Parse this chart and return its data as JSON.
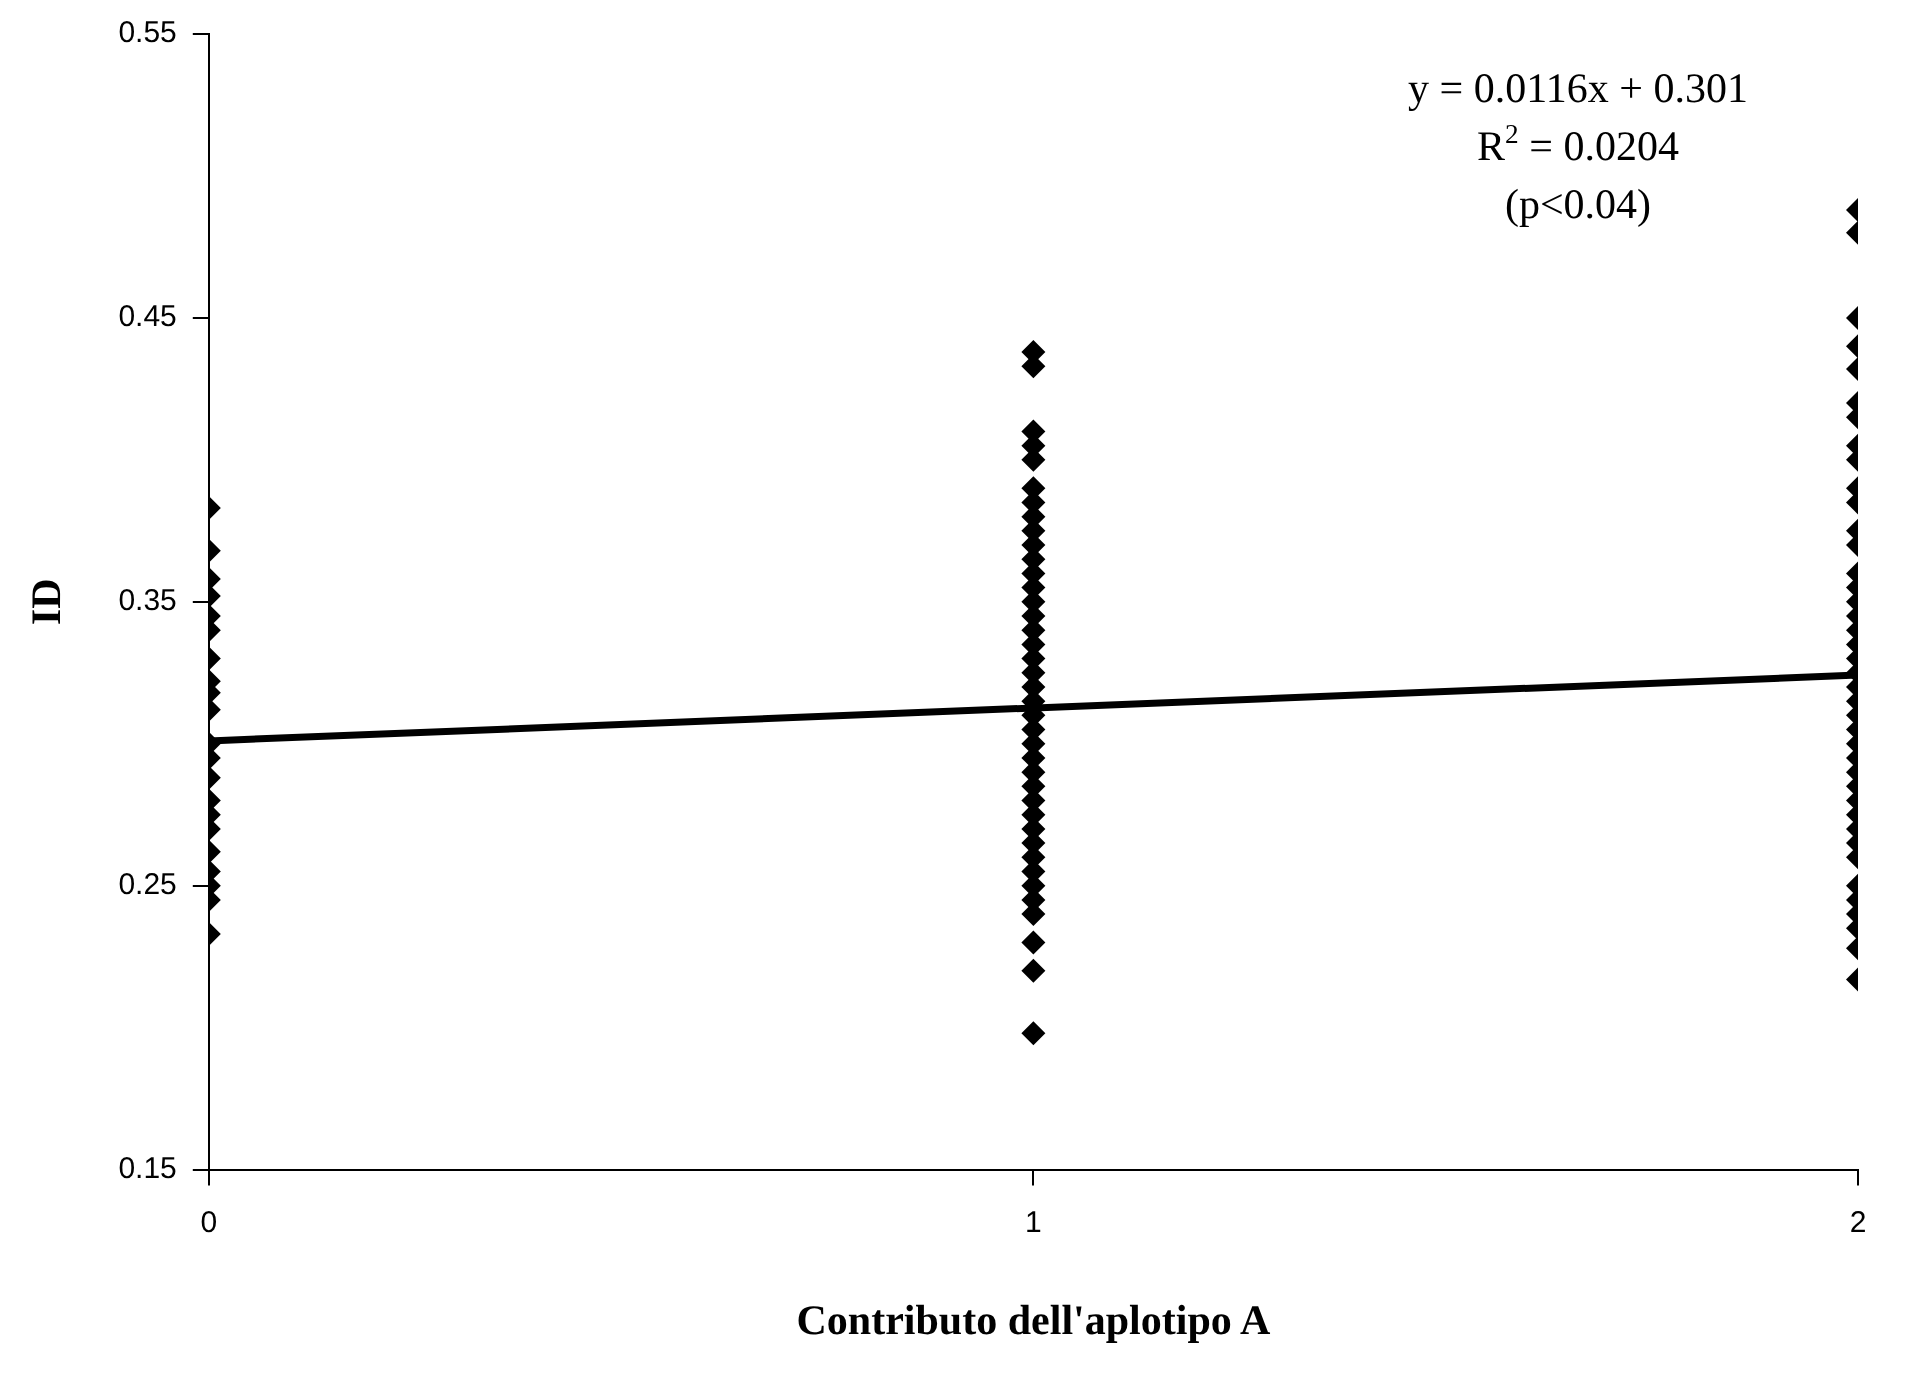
{
  "chart_data": {
    "type": "scatter",
    "xlabel": "Contributo dell'aplotipo A",
    "ylabel": "ID",
    "xlim": [
      0,
      2
    ],
    "xticks": [
      0,
      1,
      2
    ],
    "ylim": [
      0.15,
      0.55
    ],
    "yticks": [
      0.15,
      0.25,
      0.35,
      0.45,
      0.55
    ],
    "grid": false,
    "legend": false,
    "marker": "diamond",
    "annotations": [
      "y = 0.0116x + 0.301",
      "R$^{2}$ = 0.0204",
      "(p<0.04)"
    ],
    "series": [
      {
        "color": "#000000",
        "x": [
          0,
          0,
          0,
          0,
          0,
          0,
          0,
          0,
          0,
          0,
          0,
          0,
          0,
          0,
          0,
          0,
          0,
          0,
          0,
          0,
          0,
          1,
          1,
          1,
          1,
          1,
          1,
          1,
          1,
          1,
          1,
          1,
          1,
          1,
          1,
          1,
          1,
          1,
          1,
          1,
          1,
          1,
          1,
          1,
          1,
          1,
          1,
          1,
          1,
          1,
          1,
          1,
          1,
          1,
          1,
          1,
          1,
          1,
          1,
          1,
          2,
          2,
          2,
          2,
          2,
          2,
          2,
          2,
          2,
          2,
          2,
          2,
          2,
          2,
          2,
          2,
          2,
          2,
          2,
          2,
          2,
          2,
          2,
          2,
          2,
          2,
          2,
          2,
          2,
          2,
          2,
          2,
          2,
          2,
          2,
          2,
          2,
          2,
          2,
          2
        ],
        "values": [
          0.383,
          0.368,
          0.358,
          0.352,
          0.345,
          0.34,
          0.33,
          0.322,
          0.318,
          0.312,
          0.3,
          0.295,
          0.288,
          0.28,
          0.275,
          0.27,
          0.262,
          0.255,
          0.25,
          0.245,
          0.233,
          0.438,
          0.433,
          0.41,
          0.405,
          0.4,
          0.39,
          0.385,
          0.38,
          0.375,
          0.37,
          0.365,
          0.36,
          0.355,
          0.35,
          0.345,
          0.34,
          0.335,
          0.33,
          0.325,
          0.32,
          0.315,
          0.31,
          0.305,
          0.3,
          0.295,
          0.29,
          0.285,
          0.28,
          0.275,
          0.27,
          0.265,
          0.26,
          0.255,
          0.25,
          0.245,
          0.24,
          0.23,
          0.22,
          0.198,
          0.488,
          0.48,
          0.45,
          0.44,
          0.432,
          0.42,
          0.415,
          0.405,
          0.4,
          0.39,
          0.385,
          0.375,
          0.37,
          0.36,
          0.355,
          0.35,
          0.345,
          0.34,
          0.335,
          0.33,
          0.325,
          0.32,
          0.315,
          0.31,
          0.305,
          0.3,
          0.295,
          0.29,
          0.285,
          0.28,
          0.275,
          0.27,
          0.265,
          0.26,
          0.25,
          0.245,
          0.24,
          0.235,
          0.228,
          0.217
        ]
      },
      {
        "type": "line",
        "color": "#000000",
        "marker": "none",
        "line_style": "solid",
        "x": [
          0,
          2
        ],
        "values": [
          0.301,
          0.3242
        ]
      }
    ]
  }
}
